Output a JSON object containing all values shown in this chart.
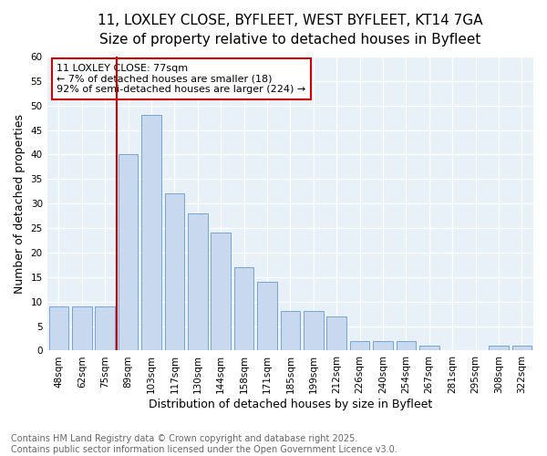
{
  "title_line1": "11, LOXLEY CLOSE, BYFLEET, WEST BYFLEET, KT14 7GA",
  "title_line2": "Size of property relative to detached houses in Byfleet",
  "xlabel": "Distribution of detached houses by size in Byfleet",
  "ylabel": "Number of detached properties",
  "categories": [
    "48sqm",
    "62sqm",
    "75sqm",
    "89sqm",
    "103sqm",
    "117sqm",
    "130sqm",
    "144sqm",
    "158sqm",
    "171sqm",
    "185sqm",
    "199sqm",
    "212sqm",
    "226sqm",
    "240sqm",
    "254sqm",
    "267sqm",
    "281sqm",
    "295sqm",
    "308sqm",
    "322sqm"
  ],
  "values": [
    9,
    9,
    9,
    40,
    48,
    32,
    28,
    24,
    17,
    14,
    8,
    8,
    7,
    2,
    2,
    2,
    1,
    0,
    0,
    1,
    1
  ],
  "bar_color": "#c8d8ee",
  "bar_edge_color": "#6699cc",
  "vline_index": 2,
  "vline_color": "#cc0000",
  "annotation_title": "11 LOXLEY CLOSE: 77sqm",
  "annotation_line2": "← 7% of detached houses are smaller (18)",
  "annotation_line3": "92% of semi-detached houses are larger (224) →",
  "annotation_box_color": "#cc0000",
  "ylim": [
    0,
    60
  ],
  "yticks": [
    0,
    5,
    10,
    15,
    20,
    25,
    30,
    35,
    40,
    45,
    50,
    55,
    60
  ],
  "footnote_line1": "Contains HM Land Registry data © Crown copyright and database right 2025.",
  "footnote_line2": "Contains public sector information licensed under the Open Government Licence v3.0.",
  "bg_color": "#ffffff",
  "plot_bg_color": "#e8f0f8",
  "grid_color": "#ffffff",
  "title_fontsize": 11,
  "subtitle_fontsize": 10,
  "axis_label_fontsize": 9,
  "tick_fontsize": 7.5,
  "annotation_fontsize": 8,
  "footnote_fontsize": 7
}
